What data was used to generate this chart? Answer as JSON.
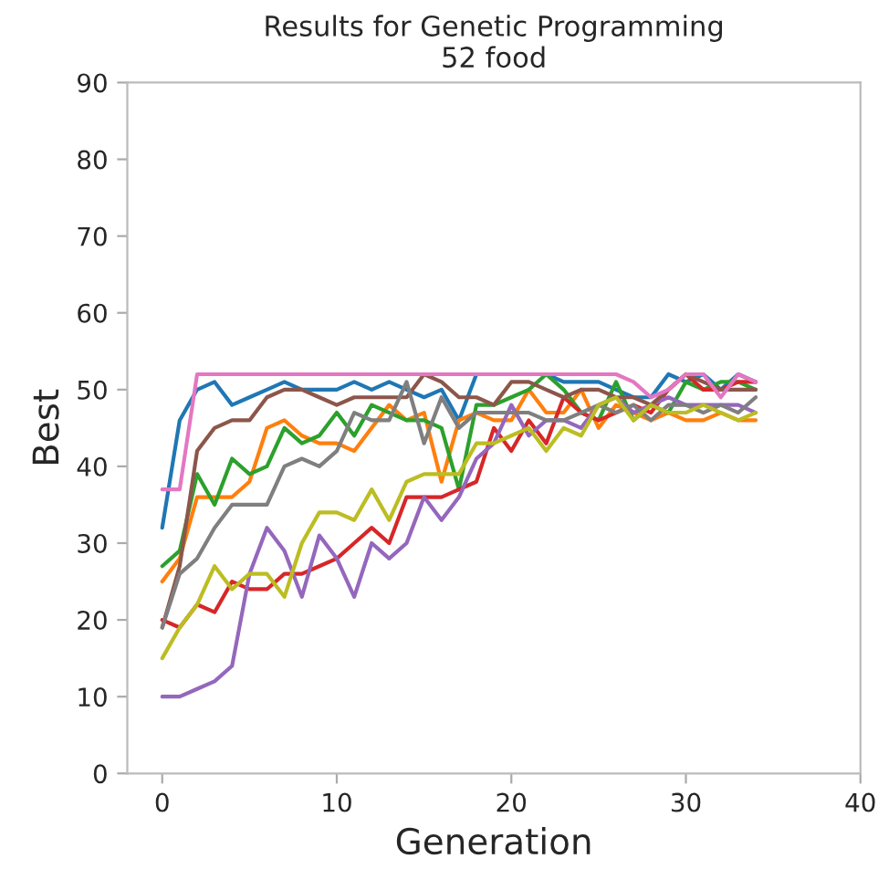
{
  "chart_data": {
    "type": "line",
    "title": "Results for Genetic Programming\n52 food",
    "xlabel": "Generation",
    "ylabel": "Best",
    "x": [
      0,
      1,
      2,
      3,
      4,
      5,
      6,
      7,
      8,
      9,
      10,
      11,
      12,
      13,
      14,
      15,
      16,
      17,
      18,
      19,
      20,
      21,
      22,
      23,
      24,
      25,
      26,
      27,
      28,
      29,
      30,
      31,
      32,
      33,
      34
    ],
    "xlim": [
      -2,
      40
    ],
    "xticks": [
      0,
      10,
      20,
      30,
      40
    ],
    "ylim": [
      0,
      90
    ],
    "yticks": [
      0,
      10,
      20,
      30,
      40,
      50,
      60,
      70,
      80,
      90
    ],
    "grid": false,
    "series": [
      {
        "color": "#1f77b4",
        "values": [
          32,
          46,
          50,
          51,
          48,
          49,
          50,
          51,
          50,
          50,
          50,
          51,
          50,
          51,
          50,
          49,
          50,
          46,
          52,
          null,
          52,
          52,
          52,
          51,
          51,
          51,
          50,
          49,
          49,
          52,
          51,
          52,
          50,
          52,
          51
        ]
      },
      {
        "color": "#ff7f0e",
        "values": [
          25,
          28,
          36,
          36,
          36,
          38,
          45,
          46,
          44,
          43,
          43,
          42,
          45,
          48,
          46,
          47,
          38,
          46,
          47,
          46,
          46,
          50,
          47,
          47,
          50,
          45,
          48,
          47,
          46,
          47,
          46,
          46,
          47,
          46,
          46
        ]
      },
      {
        "color": "#2ca02c",
        "values": [
          27,
          29,
          39,
          35,
          41,
          39,
          40,
          45,
          43,
          44,
          47,
          44,
          48,
          47,
          46,
          46,
          45,
          37,
          48,
          48,
          49,
          50,
          52,
          50,
          47,
          46,
          51,
          46,
          48,
          47,
          51,
          50,
          51,
          51,
          50
        ]
      },
      {
        "color": "#d62728",
        "values": [
          20,
          19,
          22,
          21,
          25,
          24,
          24,
          26,
          26,
          27,
          28,
          30,
          32,
          30,
          36,
          36,
          36,
          37,
          38,
          45,
          42,
          46,
          43,
          49,
          47,
          46,
          47,
          48,
          47,
          50,
          52,
          50,
          50,
          51,
          51
        ]
      },
      {
        "color": "#9467bd",
        "values": [
          10,
          10,
          11,
          12,
          14,
          26,
          32,
          29,
          23,
          31,
          28,
          23,
          30,
          28,
          30,
          36,
          33,
          36,
          41,
          43,
          48,
          44,
          46,
          46,
          45,
          48,
          49,
          47,
          48,
          49,
          48,
          48,
          48,
          48,
          47
        ]
      },
      {
        "color": "#8c564b",
        "values": [
          19,
          27,
          42,
          45,
          46,
          46,
          49,
          50,
          50,
          49,
          48,
          49,
          49,
          49,
          49,
          52,
          51,
          49,
          49,
          48,
          51,
          51,
          50,
          49,
          50,
          50,
          49,
          49,
          48,
          50,
          52,
          51,
          50,
          50,
          50
        ]
      },
      {
        "color": "#e377c2",
        "values": [
          37,
          37,
          52,
          52,
          52,
          52,
          52,
          52,
          52,
          52,
          52,
          52,
          52,
          52,
          52,
          52,
          52,
          52,
          52,
          52,
          52,
          52,
          52,
          52,
          52,
          52,
          52,
          51,
          49,
          50,
          52,
          52,
          49,
          52,
          51
        ]
      },
      {
        "color": "#7f7f7f",
        "values": [
          19,
          26,
          28,
          32,
          35,
          35,
          35,
          40,
          41,
          40,
          42,
          47,
          46,
          46,
          51,
          43,
          49,
          45,
          47,
          47,
          47,
          47,
          46,
          46,
          47,
          48,
          47,
          48,
          46,
          48,
          48,
          47,
          48,
          47,
          49
        ]
      },
      {
        "color": "#bcbd22",
        "values": [
          15,
          19,
          22,
          27,
          24,
          26,
          26,
          23,
          30,
          34,
          34,
          33,
          37,
          33,
          38,
          39,
          39,
          39,
          43,
          43,
          44,
          45,
          42,
          45,
          44,
          48,
          49,
          46,
          48,
          47,
          47,
          48,
          47,
          46,
          47
        ]
      }
    ]
  }
}
